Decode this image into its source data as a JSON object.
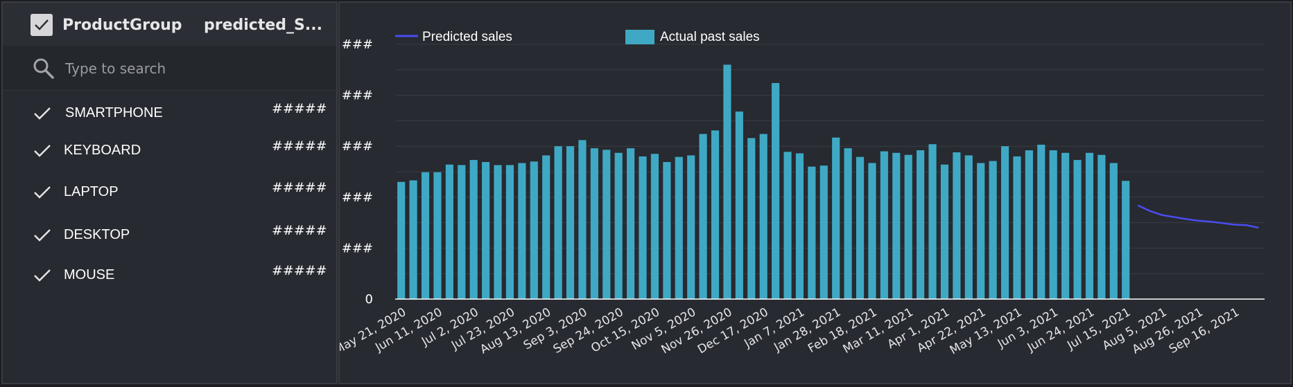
{
  "filter": {
    "header": {
      "group_label": "ProductGroup",
      "metric_label": "predicted_S..."
    },
    "search": {
      "placeholder": "Type to search",
      "value": ""
    },
    "items": [
      {
        "label": "SMARTPHONE",
        "value": "#####",
        "checked": true
      },
      {
        "label": "KEYBOARD",
        "value": "#####",
        "checked": true
      },
      {
        "label": "LAPTOP",
        "value": "#####",
        "checked": true
      },
      {
        "label": "DESKTOP",
        "value": "#####",
        "checked": true
      },
      {
        "label": "MOUSE",
        "value": "#####",
        "checked": true
      }
    ]
  },
  "colors": {
    "bar": "#3fa9c5",
    "line": "#4a4cf0",
    "grid": "#3a3d44",
    "axis": "#ffffff"
  },
  "chart_data": {
    "type": "bar",
    "legend": [
      {
        "name": "Predicted sales",
        "kind": "line",
        "color": "#4a4cf0"
      },
      {
        "name": "Actual past sales",
        "kind": "bar",
        "color": "#3fa9c5"
      }
    ],
    "legend_placement": "top",
    "grid": true,
    "y_tick_labels": [
      "0",
      "###",
      "###",
      "###",
      "###",
      "###"
    ],
    "y_tick_values": [
      0,
      100,
      200,
      300,
      400,
      500
    ],
    "ylim": [
      0,
      500
    ],
    "x_tick_labels": [
      "May 21, 2020",
      "Jun 11, 2020",
      "Jul 2, 2020",
      "Jul 23, 2020",
      "Aug 13, 2020",
      "Sep 3, 2020",
      "Sep 24, 2020",
      "Oct 15, 2020",
      "Nov 5, 2020",
      "Nov 26, 2020",
      "Dec 17, 2020",
      "Jan 7, 2021",
      "Jan 28, 2021",
      "Feb 18, 2021",
      "Mar 11, 2021",
      "Apr 1, 2021",
      "Apr 22, 2021",
      "May 13, 2021",
      "Jun 3, 2021",
      "Jun 24, 2021",
      "Jul 15, 2021",
      "Aug 5, 2021",
      "Aug 26, 2021",
      "Sep 16, 2021"
    ],
    "weeks_total": 72,
    "series": [
      {
        "name": "Actual past sales",
        "kind": "bar",
        "values": [
          230,
          233,
          249,
          249,
          264,
          263,
          273,
          269,
          263,
          263,
          267,
          270,
          282,
          300,
          300,
          312,
          296,
          293,
          287,
          296,
          280,
          285,
          269,
          279,
          282,
          324,
          331,
          460,
          368,
          316,
          324,
          424,
          289,
          286,
          260,
          262,
          317,
          296,
          279,
          267,
          290,
          287,
          283,
          292,
          304,
          264,
          288,
          282,
          267,
          271,
          300,
          280,
          292,
          303,
          292,
          287,
          273,
          287,
          283,
          267,
          232
        ],
        "start_week": 0
      },
      {
        "name": "Predicted sales",
        "kind": "line",
        "values": [
          184,
          173,
          165,
          161,
          157,
          154,
          152,
          149,
          146,
          145,
          140
        ],
        "start_week": 61
      }
    ]
  }
}
